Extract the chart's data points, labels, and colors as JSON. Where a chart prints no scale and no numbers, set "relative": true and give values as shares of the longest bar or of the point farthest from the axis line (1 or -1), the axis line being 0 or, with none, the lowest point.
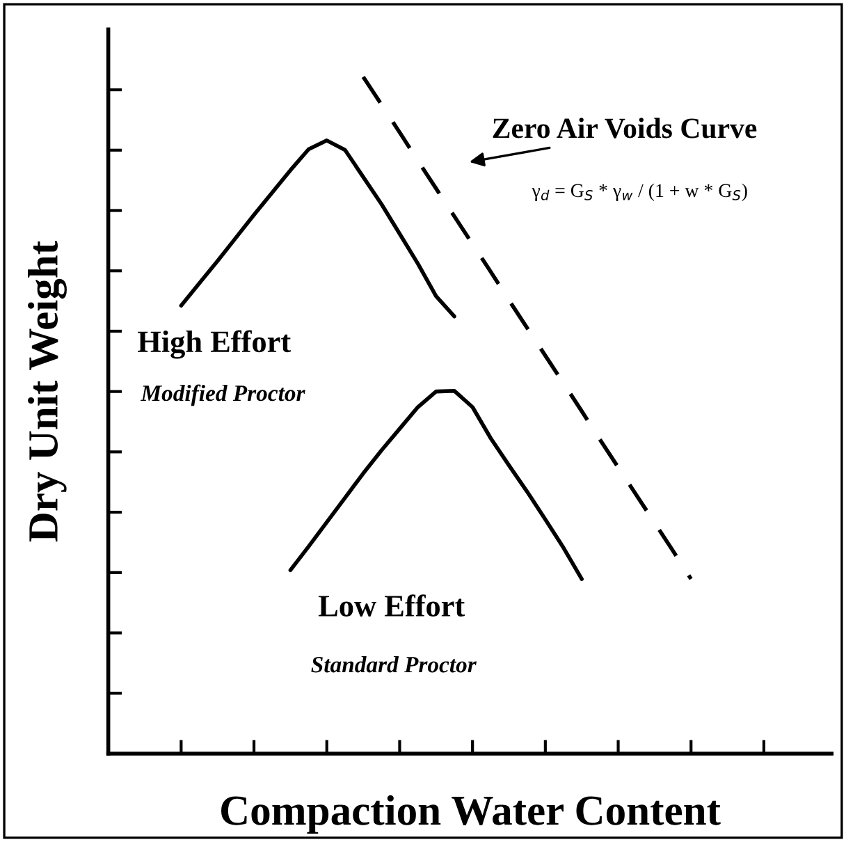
{
  "chart_data": {
    "type": "line",
    "relative": true,
    "xlabel": "Compaction Water Content",
    "ylabel": "Dry Unit Weight",
    "categories": [
      null,
      null,
      null,
      null,
      null,
      null,
      null,
      null,
      null,
      null,
      null,
      null,
      null,
      null,
      null,
      null,
      null,
      null,
      null,
      null,
      null,
      null,
      null,
      null,
      null,
      null,
      null,
      null,
      null
    ],
    "series": [
      {
        "color": "#000000",
        "line_style": "solid",
        "values": [
          0.662,
          0.695,
          0.728,
          0.762,
          0.796,
          0.829,
          0.862,
          0.893,
          0.906,
          0.892,
          0.852,
          0.812,
          0.768,
          0.724,
          0.676,
          0.646,
          null,
          null,
          null,
          null,
          null,
          null,
          null,
          null,
          null,
          null,
          null,
          null,
          null
        ]
      },
      {
        "color": "#000000",
        "line_style": "solid",
        "values": [
          null,
          null,
          null,
          null,
          null,
          null,
          0.271,
          0.306,
          0.342,
          0.378,
          0.414,
          0.448,
          0.48,
          0.512,
          0.535,
          0.536,
          0.512,
          0.466,
          0.426,
          0.387,
          0.346,
          0.304,
          0.258,
          null,
          null,
          null,
          null,
          null,
          null
        ]
      },
      {
        "color": "#000000",
        "line_style": "dashed",
        "values": [
          null,
          null,
          null,
          null,
          null,
          null,
          null,
          null,
          null,
          null,
          1.0,
          0.959,
          0.918,
          0.876,
          0.835,
          0.794,
          0.753,
          0.712,
          0.67,
          0.629,
          0.588,
          0.547,
          0.506,
          0.464,
          0.423,
          0.382,
          0.341,
          0.3,
          0.258
        ]
      }
    ],
    "annotations": [
      "Zero Air Voids Curve",
      "γ$_{d}$ = G$_{S}$ * γ$_{w}$ / (1 + w * G$_{S}$)",
      "High Effort",
      "Modified Proctor",
      "Low Effort",
      "Standard Proctor"
    ],
    "grid": false,
    "legend": false,
    "marker": "none"
  }
}
